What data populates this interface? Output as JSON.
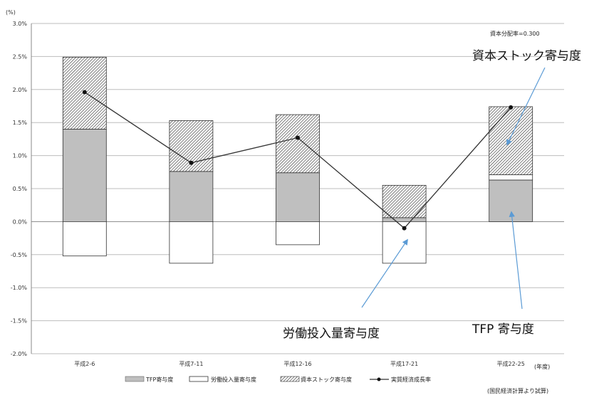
{
  "chart_data": {
    "type": "bar",
    "y_unit": "(%)",
    "x_unit": "(年度)",
    "ylim": [
      -2.0,
      3.0
    ],
    "y_ticks": [
      "3.0%",
      "2.5%",
      "2.0%",
      "1.5%",
      "1.0%",
      "0.5%",
      "0.0%",
      "-0.5%",
      "-1.0%",
      "-1.5%",
      "-2.0%"
    ],
    "categories": [
      "平成2-6",
      "平成7-11",
      "平成12-16",
      "平成17-21",
      "平成22-25"
    ],
    "series": [
      {
        "name": "TFP寄与度",
        "values": [
          1.4,
          0.76,
          0.74,
          0.06,
          0.63
        ]
      },
      {
        "name": "労働投入量寄与度",
        "values": [
          -0.52,
          -0.63,
          -0.35,
          -0.63,
          0.08
        ]
      },
      {
        "name": "資本ストック寄与度",
        "values": [
          1.09,
          0.77,
          0.88,
          0.49,
          1.03
        ]
      },
      {
        "name": "実質経済成長率",
        "values": [
          1.96,
          0.89,
          1.27,
          -0.1,
          1.73
        ]
      }
    ],
    "legend_position": "bottom",
    "grid": true,
    "capital_share_label": "資本分配率=0.300",
    "source_note": "(国民経済計算より試算)",
    "annotations": [
      {
        "text": "資本ストック寄与度",
        "target_category": "平成22-25"
      },
      {
        "text": "労働投入量寄与度",
        "target_category": "平成17-21"
      },
      {
        "text": "TFP 寄与度",
        "target_category": "平成22-25"
      }
    ],
    "colors": {
      "tfp": "#bfbfbf",
      "labor": "#ffffff",
      "capital_hatch": "#444444",
      "line": "#333333",
      "arrow": "#5b9bd5"
    }
  }
}
